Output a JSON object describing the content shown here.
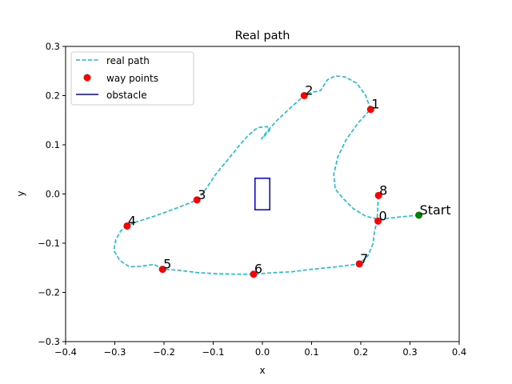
{
  "chart_data": {
    "type": "line",
    "title": "Real path",
    "xlabel": "x",
    "ylabel": "y",
    "xlim": [
      -0.4,
      0.4
    ],
    "ylim": [
      -0.3,
      0.3
    ],
    "xticks": [
      -0.4,
      -0.3,
      -0.2,
      -0.1,
      0.0,
      0.1,
      0.2,
      0.3,
      0.4
    ],
    "yticks": [
      -0.3,
      -0.2,
      -0.1,
      0.0,
      0.1,
      0.2,
      0.3
    ],
    "xtick_labels": [
      "−0.4",
      "−0.3",
      "−0.2",
      "−0.1",
      "0.0",
      "0.1",
      "0.2",
      "0.3",
      "0.4"
    ],
    "ytick_labels": [
      "−0.3",
      "−0.2",
      "−0.1",
      "0.0",
      "0.1",
      "0.2",
      "0.3"
    ],
    "grid": false,
    "legend_position": "top-left",
    "series": [
      {
        "name": "real path",
        "style": "dashed",
        "color": "#17becf",
        "points": [
          [
            0.318,
            -0.043
          ],
          [
            0.285,
            -0.046
          ],
          [
            0.258,
            -0.049
          ],
          [
            0.238,
            -0.052
          ],
          [
            0.21,
            -0.045
          ],
          [
            0.185,
            -0.03
          ],
          [
            0.165,
            -0.01
          ],
          [
            0.148,
            0.01
          ],
          [
            0.145,
            0.04
          ],
          [
            0.153,
            0.075
          ],
          [
            0.17,
            0.11
          ],
          [
            0.195,
            0.145
          ],
          [
            0.22,
            0.172
          ],
          [
            0.21,
            0.2
          ],
          [
            0.192,
            0.225
          ],
          [
            0.168,
            0.238
          ],
          [
            0.148,
            0.24
          ],
          [
            0.132,
            0.232
          ],
          [
            0.118,
            0.21
          ],
          [
            0.101,
            0.207
          ],
          [
            0.085,
            0.2
          ],
          [
            0.06,
            0.178
          ],
          [
            0.03,
            0.15
          ],
          [
            0.01,
            0.128
          ],
          [
            -0.002,
            0.112
          ],
          [
            0.015,
            0.13
          ],
          [
            0.01,
            0.137
          ],
          [
            -0.01,
            0.135
          ],
          [
            -0.03,
            0.118
          ],
          [
            -0.05,
            0.095
          ],
          [
            -0.07,
            0.07
          ],
          [
            -0.095,
            0.04
          ],
          [
            -0.115,
            0.01
          ],
          [
            -0.133,
            -0.012
          ],
          [
            -0.165,
            -0.025
          ],
          [
            -0.2,
            -0.038
          ],
          [
            -0.235,
            -0.05
          ],
          [
            -0.26,
            -0.058
          ],
          [
            -0.275,
            -0.065
          ],
          [
            -0.288,
            -0.075
          ],
          [
            -0.298,
            -0.093
          ],
          [
            -0.302,
            -0.115
          ],
          [
            -0.29,
            -0.135
          ],
          [
            -0.27,
            -0.148
          ],
          [
            -0.248,
            -0.147
          ],
          [
            -0.22,
            -0.143
          ],
          [
            -0.203,
            -0.153
          ],
          [
            -0.17,
            -0.155
          ],
          [
            -0.13,
            -0.16
          ],
          [
            -0.09,
            -0.162
          ],
          [
            -0.05,
            -0.163
          ],
          [
            -0.018,
            -0.163
          ],
          [
            0.02,
            -0.16
          ],
          [
            0.06,
            -0.158
          ],
          [
            0.1,
            -0.153
          ],
          [
            0.15,
            -0.148
          ],
          [
            0.197,
            -0.142
          ],
          [
            0.215,
            -0.125
          ],
          [
            0.225,
            -0.1
          ],
          [
            0.228,
            -0.075
          ],
          [
            0.233,
            -0.055
          ],
          [
            0.234,
            -0.035
          ],
          [
            0.235,
            -0.015
          ],
          [
            0.236,
            -0.003
          ]
        ]
      },
      {
        "name": "way points",
        "style": "markers",
        "color": "#ff0000",
        "points": [
          [
            0.235,
            -0.055
          ],
          [
            0.22,
            0.172
          ],
          [
            0.085,
            0.2
          ],
          [
            -0.133,
            -0.012
          ],
          [
            -0.275,
            -0.065
          ],
          [
            -0.203,
            -0.153
          ],
          [
            -0.018,
            -0.163
          ],
          [
            0.197,
            -0.142
          ],
          [
            0.236,
            -0.003
          ]
        ],
        "labels": [
          "0",
          "1",
          "2",
          "3",
          "4",
          "5",
          "6",
          "7",
          "8"
        ]
      }
    ],
    "start": {
      "label": "Start",
      "point": [
        0.318,
        -0.043
      ],
      "color": "#008000"
    },
    "obstacle": {
      "name": "obstacle",
      "color": "#0000cc",
      "x": [
        -0.015,
        0.015
      ],
      "y": [
        -0.032,
        0.032
      ]
    }
  }
}
